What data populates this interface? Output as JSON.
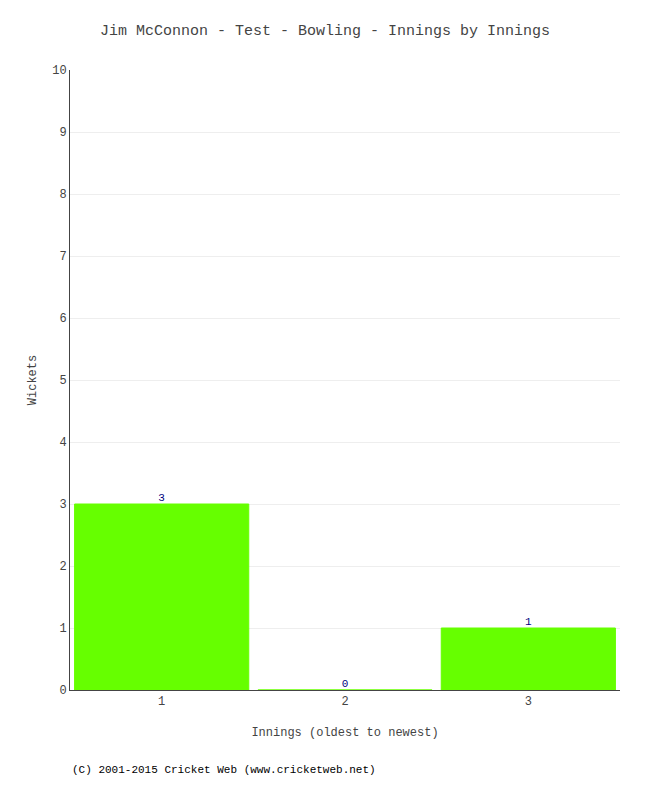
{
  "chart_data": {
    "type": "bar",
    "title": "Jim McConnon - Test - Bowling - Innings by Innings",
    "xlabel": "Innings (oldest to newest)",
    "ylabel": "Wickets",
    "x": [
      1,
      2,
      3
    ],
    "values": [
      3,
      0,
      1
    ],
    "color": "#66ff00",
    "xlim": [
      0.5,
      3.5
    ],
    "xticks": [
      1,
      2,
      3
    ],
    "ylim": [
      0,
      10
    ],
    "yticks": [
      0,
      1,
      2,
      3,
      4,
      5,
      6,
      7,
      8,
      9,
      10
    ],
    "grid": true,
    "data_labels": true,
    "annotations": [
      "(C) 2001-2015 Cricket Web (www.cricketweb.net)"
    ]
  }
}
